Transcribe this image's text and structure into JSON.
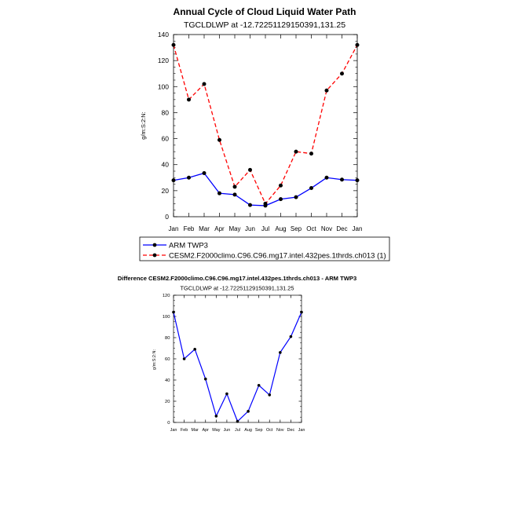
{
  "colors": {
    "arm": "#0000ff",
    "model": "#ff0000",
    "diff": "#0000ff",
    "axis": "#000000"
  },
  "chart_data": [
    {
      "type": "line",
      "title": "Annual Cycle of Cloud Liquid Water Path",
      "subtitle": "TGCLDLWP at -12.72251129150391,131.25",
      "ylabel": "g/m:S:2:N:",
      "xlabel": "",
      "categories": [
        "Jan",
        "Feb",
        "Mar",
        "Apr",
        "May",
        "Jun",
        "Jul",
        "Aug",
        "Sep",
        "Oct",
        "Nov",
        "Dec",
        "Jan"
      ],
      "ylim": [
        0,
        140
      ],
      "yticks": [
        "0",
        "20",
        "40",
        "60",
        "80",
        "100",
        "120",
        "140"
      ],
      "series": [
        {
          "name": "ARM TWP3",
          "style": "solid",
          "values": [
            28,
            30,
            33.5,
            18,
            17,
            9,
            8.5,
            13.5,
            15,
            22,
            30,
            28.5,
            28
          ]
        },
        {
          "name": "CESM2.F2000climo.C96.C96.mg17.intel.432pes.1thrds.ch013 (1)",
          "style": "dashed",
          "values": [
            132,
            90,
            102,
            59,
            23,
            36,
            10,
            24,
            50,
            48.5,
            97,
            110,
            132
          ]
        }
      ],
      "legend_position": "bottom"
    },
    {
      "type": "line",
      "title": "Difference CESM2.F2000climo.C96.C96.mg17.intel.432pes.1thrds.ch013 - ARM TWP3",
      "subtitle": "TGCLDLWP at -12.72251129150391,131.25",
      "ylabel": "g/m:S:2:N:",
      "xlabel": "",
      "categories": [
        "Jan",
        "Feb",
        "Mar",
        "Apr",
        "May",
        "Jun",
        "Jul",
        "Aug",
        "Sep",
        "Oct",
        "Nov",
        "Dec",
        "Jan"
      ],
      "ylim": [
        0,
        120
      ],
      "yticks": [
        "0",
        "20",
        "40",
        "60",
        "80",
        "100",
        "120"
      ],
      "series": [
        {
          "values": [
            104,
            60,
            69,
            41,
            6,
            27,
            1,
            10.5,
            35,
            26,
            66,
            81,
            104
          ]
        }
      ]
    }
  ]
}
